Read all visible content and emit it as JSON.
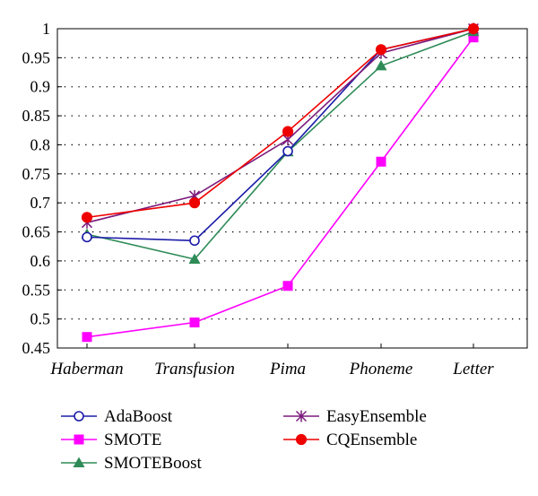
{
  "chart_data": {
    "type": "line",
    "title": "",
    "xlabel": "",
    "ylabel": "",
    "categories": [
      "Haberman",
      "Transfusion",
      "Pima",
      "Phoneme",
      "Letter"
    ],
    "ylim": [
      0.45,
      1.0
    ],
    "yticks": [
      0.45,
      0.5,
      0.55,
      0.6,
      0.65,
      0.7,
      0.75,
      0.8,
      0.85,
      0.9,
      0.95,
      1
    ],
    "ytick_labels": [
      "0.45",
      "0.5",
      "0.55",
      "0.6",
      "0.65",
      "0.7",
      "0.75",
      "0.8",
      "0.85",
      "0.9",
      "0.95",
      "1"
    ],
    "grid": "horizontal dotted",
    "legend_position": "bottom",
    "series": [
      {
        "name": "AdaBoost",
        "color": "#1c1ca8",
        "marker": "open-circle",
        "values": [
          0.641,
          0.635,
          0.789,
          0.964,
          1.0
        ]
      },
      {
        "name": "SMOTE",
        "color": "#ff00ff",
        "marker": "square",
        "values": [
          0.469,
          0.494,
          0.557,
          0.771,
          0.985
        ]
      },
      {
        "name": "SMOTEBoost",
        "color": "#2e8b57",
        "marker": "triangle",
        "values": [
          0.646,
          0.603,
          0.788,
          0.936,
          0.995
        ]
      },
      {
        "name": "EasyEnsemble",
        "color": "#7b1a7b",
        "marker": "star",
        "values": [
          0.666,
          0.712,
          0.809,
          0.958,
          1.0
        ]
      },
      {
        "name": "CQEnsemble",
        "color": "#ee0000",
        "marker": "filled-circle",
        "values": [
          0.675,
          0.7,
          0.823,
          0.964,
          1.0
        ]
      }
    ]
  }
}
